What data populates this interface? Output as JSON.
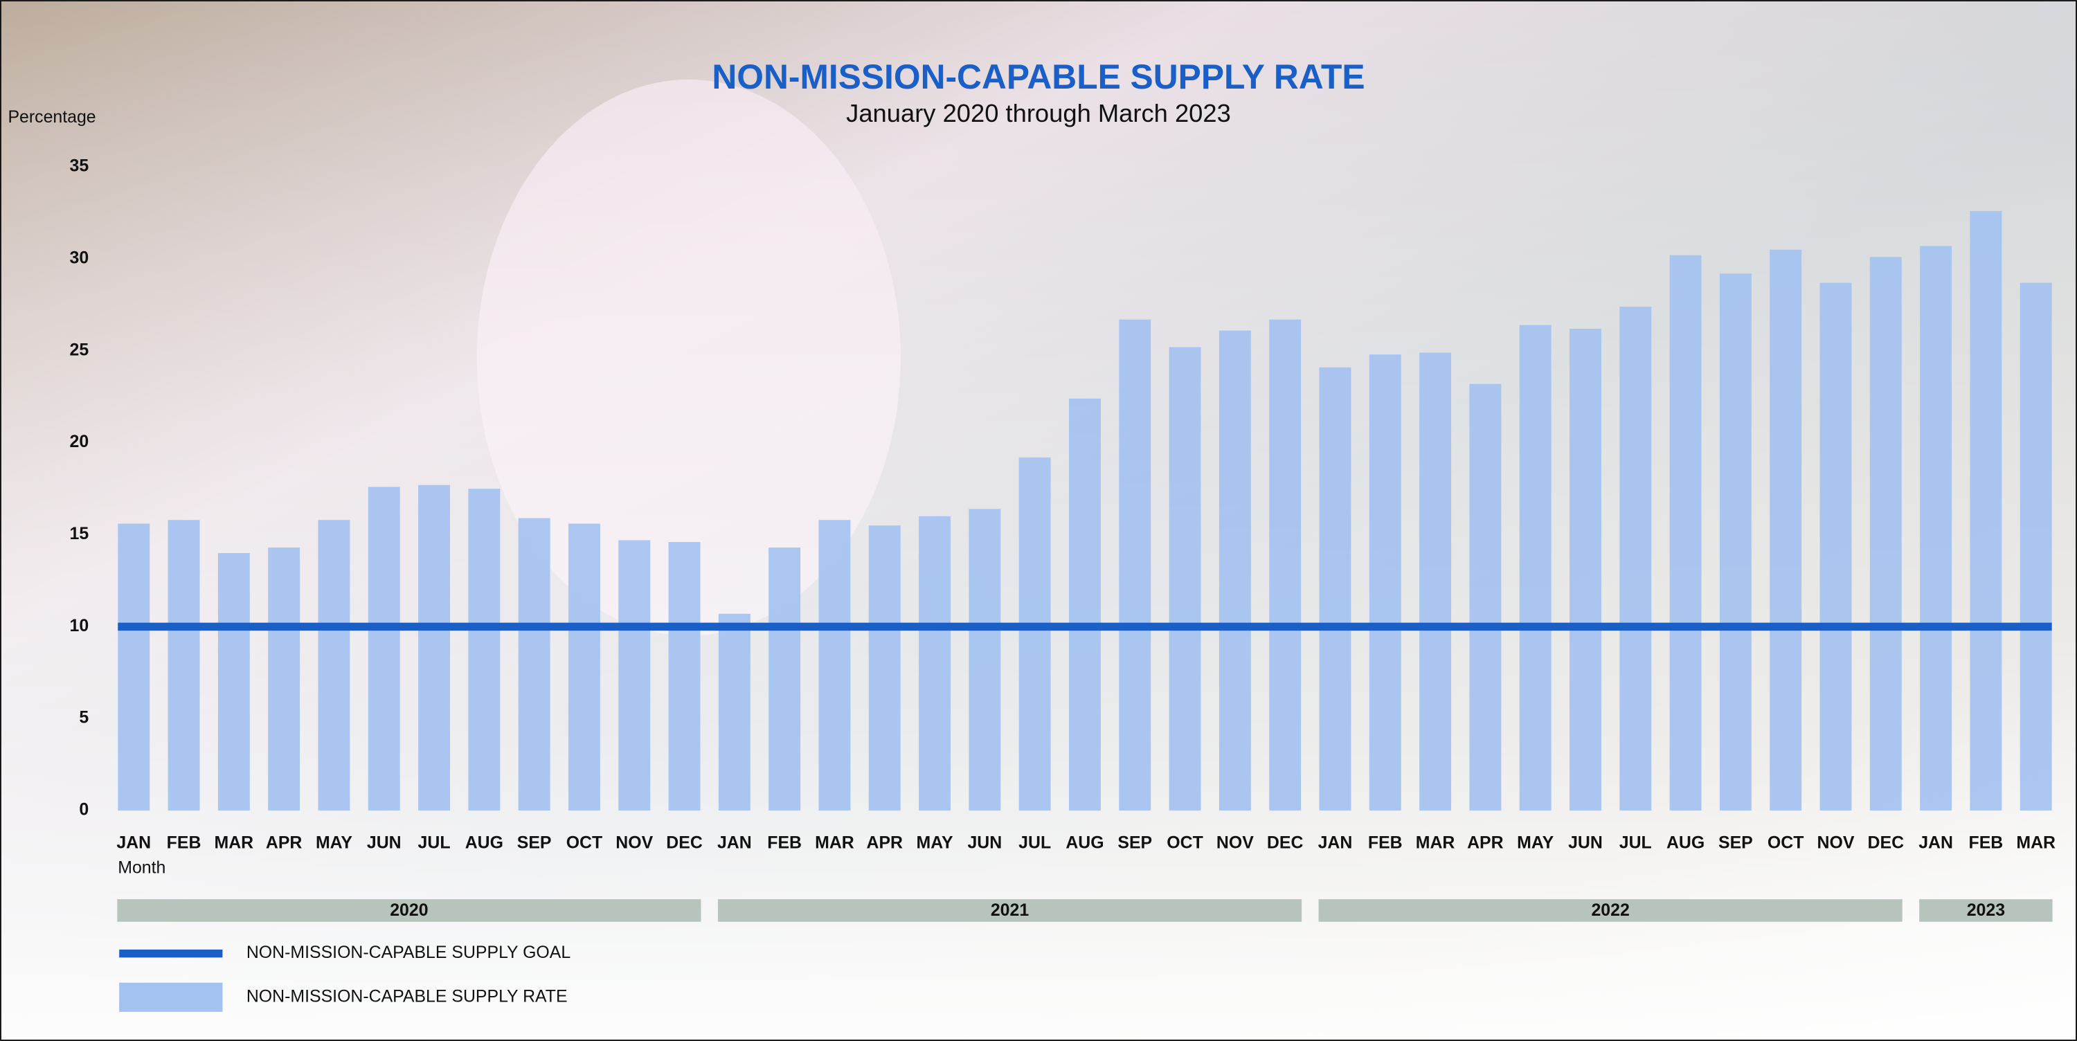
{
  "chart_data": {
    "type": "bar",
    "title": "NON-MISSION-CAPABLE SUPPLY RATE",
    "subtitle": "January 2020 through March 2023",
    "y_label": "Percentage",
    "x_label": "Month",
    "groups": [
      {
        "label": "2020",
        "categories": [
          "JAN",
          "FEB",
          "MAR",
          "APR",
          "MAY",
          "JUN",
          "JUL",
          "AUG",
          "SEP",
          "OCT",
          "NOV",
          "DEC"
        ]
      },
      {
        "label": "2021",
        "categories": [
          "JAN",
          "FEB",
          "MAR",
          "APR",
          "MAY",
          "JUN",
          "JUL",
          "AUG",
          "SEP",
          "OCT",
          "NOV",
          "DEC"
        ]
      },
      {
        "label": "2022",
        "categories": [
          "JAN",
          "FEB",
          "MAR",
          "APR",
          "MAY",
          "JUN",
          "JUL",
          "AUG",
          "SEP",
          "OCT",
          "NOV",
          "DEC"
        ]
      },
      {
        "label": "2023",
        "categories": [
          "JAN",
          "FEB",
          "MAR"
        ]
      }
    ],
    "series": [
      {
        "name": "NON-MISSION-CAPABLE SUPPLY GOAL",
        "type": "line",
        "color": "#1a5fc8",
        "values": [
          10,
          10,
          10,
          10,
          10,
          10,
          10,
          10,
          10,
          10,
          10,
          10,
          10,
          10,
          10,
          10,
          10,
          10,
          10,
          10,
          10,
          10,
          10,
          10,
          10,
          10,
          10,
          10,
          10,
          10,
          10,
          10,
          10,
          10,
          10,
          10,
          10,
          10,
          10
        ]
      },
      {
        "name": "NON-MISSION-CAPABLE SUPPLY RATE",
        "type": "bar",
        "color": "#a4c2f0",
        "values": [
          15.6,
          15.8,
          14.0,
          14.3,
          15.8,
          17.6,
          17.7,
          17.5,
          15.9,
          15.6,
          14.7,
          14.6,
          10.7,
          14.3,
          15.8,
          15.5,
          16.0,
          16.4,
          19.2,
          22.4,
          26.7,
          25.2,
          26.1,
          26.7,
          24.1,
          24.8,
          24.9,
          23.2,
          26.4,
          26.2,
          27.4,
          30.2,
          29.2,
          30.5,
          28.7,
          30.1,
          30.7,
          32.6,
          28.7
        ]
      }
    ],
    "ylim": [
      0,
      35
    ],
    "yticks": [
      0,
      5,
      10,
      15,
      20,
      25,
      30,
      35
    ],
    "grid": false,
    "group_band_color": "#b6c4bc"
  }
}
